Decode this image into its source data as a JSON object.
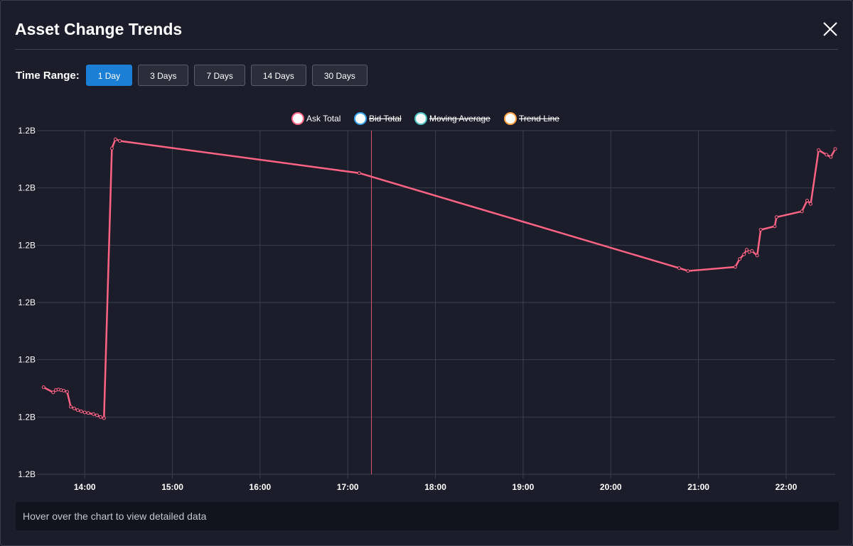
{
  "header": {
    "title": "Asset Change Trends"
  },
  "time_range": {
    "label": "Time Range:",
    "options": [
      "1 Day",
      "3 Days",
      "7 Days",
      "14 Days",
      "30 Days"
    ],
    "selected": "1 Day",
    "active_color": "#1c7fd6"
  },
  "footer": {
    "hint": "Hover over the chart to view detailed data"
  },
  "colors": {
    "background": "#1b1d2a",
    "grid": "#3b3e4c",
    "crosshair": "#e0556e"
  },
  "chart_data": {
    "type": "line",
    "title": "",
    "xlabel": "",
    "ylabel": "",
    "x_ticks": [
      "14:00",
      "15:00",
      "16:00",
      "17:00",
      "18:00",
      "19:00",
      "20:00",
      "21:00",
      "22:00"
    ],
    "y_ticks": [
      "1.2B",
      "1.2B",
      "1.2B",
      "1.2B",
      "1.2B",
      "1.2B",
      "1.2B"
    ],
    "x_range_hours": [
      13.52,
      22.56
    ],
    "y_range": [
      0,
      6
    ],
    "grid": true,
    "legend_position": "top-center",
    "legend": [
      {
        "name": "Ask Total",
        "color": "#ff6384",
        "hidden": false
      },
      {
        "name": "Bid Total",
        "color": "#36a2eb",
        "hidden": true
      },
      {
        "name": "Moving Average",
        "color": "#4bc0c0",
        "hidden": true
      },
      {
        "name": "Trend Line",
        "color": "#ff9f40",
        "hidden": true
      }
    ],
    "crosshair_hour": 17.27,
    "series": [
      {
        "name": "Ask Total",
        "color": "#ff6384",
        "points": [
          [
            13.53,
            1.52
          ],
          [
            13.64,
            1.43
          ],
          [
            13.67,
            1.47
          ],
          [
            13.7,
            1.48
          ],
          [
            13.73,
            1.47
          ],
          [
            13.76,
            1.46
          ],
          [
            13.8,
            1.44
          ],
          [
            13.84,
            1.18
          ],
          [
            13.88,
            1.15
          ],
          [
            13.92,
            1.12
          ],
          [
            13.96,
            1.1
          ],
          [
            14.0,
            1.08
          ],
          [
            14.04,
            1.07
          ],
          [
            14.1,
            1.05
          ],
          [
            14.14,
            1.03
          ],
          [
            14.18,
            1.0
          ],
          [
            14.22,
            0.98
          ],
          [
            14.31,
            5.69
          ],
          [
            14.35,
            5.85
          ],
          [
            14.4,
            5.82
          ],
          [
            17.13,
            5.26
          ],
          [
            20.78,
            3.6
          ],
          [
            20.88,
            3.55
          ],
          [
            21.42,
            3.62
          ],
          [
            21.47,
            3.76
          ],
          [
            21.52,
            3.84
          ],
          [
            21.55,
            3.92
          ],
          [
            21.58,
            3.88
          ],
          [
            21.61,
            3.9
          ],
          [
            21.67,
            3.82
          ],
          [
            21.71,
            4.27
          ],
          [
            21.87,
            4.33
          ],
          [
            21.89,
            4.49
          ],
          [
            22.18,
            4.59
          ],
          [
            22.24,
            4.78
          ],
          [
            22.28,
            4.72
          ],
          [
            22.37,
            5.66
          ],
          [
            22.46,
            5.58
          ],
          [
            22.51,
            5.54
          ],
          [
            22.56,
            5.68
          ]
        ]
      }
    ]
  }
}
